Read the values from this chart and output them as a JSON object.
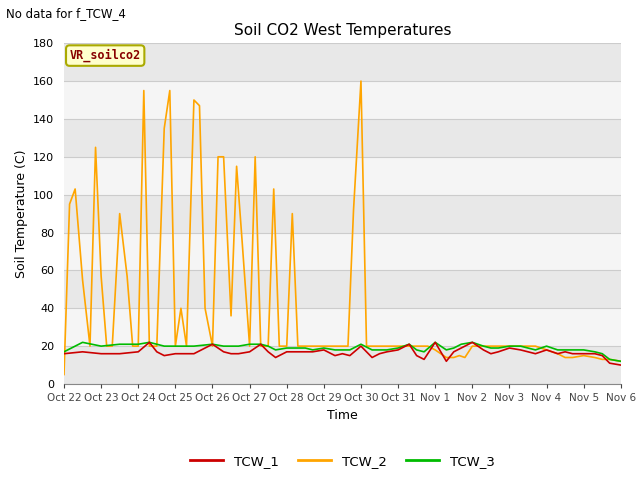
{
  "title": "Soil CO2 West Temperatures",
  "no_data_text": "No data for f_TCW_4",
  "xlabel": "Time",
  "ylabel": "Soil Temperature (C)",
  "ylim": [
    0,
    180
  ],
  "xlim": [
    0,
    15
  ],
  "tick_labels": [
    "Oct 22",
    "Oct 23",
    "Oct 24",
    "Oct 25",
    "Oct 26",
    "Oct 27",
    "Oct 28",
    "Oct 29",
    "Oct 30",
    "Oct 31",
    "Nov 1",
    "Nov 2",
    "Nov 3",
    "Nov 4",
    "Nov 5",
    "Nov 6"
  ],
  "annotation_text": "VR_soilco2",
  "annotation_box_facecolor": "#FFFFCC",
  "annotation_box_edgecolor": "#AAAA00",
  "annotation_text_color": "#880000",
  "fig_facecolor": "#FFFFFF",
  "plot_bg_color": "#FFFFFF",
  "band_colors": [
    "#E8E8E8",
    "#F5F5F5"
  ],
  "legend": [
    "TCW_1",
    "TCW_2",
    "TCW_3"
  ],
  "legend_colors": [
    "#CC0000",
    "#FFA500",
    "#00BB00"
  ],
  "grid_color": "#CCCCCC",
  "tcw1_x": [
    0,
    0.5,
    1.0,
    1.5,
    2.0,
    2.3,
    2.5,
    2.7,
    3.0,
    3.5,
    4.0,
    4.3,
    4.5,
    4.7,
    5.0,
    5.3,
    5.5,
    5.7,
    6.0,
    6.3,
    6.5,
    6.7,
    7.0,
    7.3,
    7.5,
    7.7,
    8.0,
    8.3,
    8.5,
    8.7,
    9.0,
    9.3,
    9.5,
    9.7,
    10.0,
    10.3,
    10.5,
    10.7,
    11.0,
    11.3,
    11.5,
    11.7,
    12.0,
    12.3,
    12.5,
    12.7,
    13.0,
    13.3,
    13.5,
    13.7,
    14.0,
    14.3,
    14.5,
    14.7,
    15.0
  ],
  "tcw1_y": [
    16,
    17,
    16,
    16,
    17,
    22,
    17,
    15,
    16,
    16,
    21,
    17,
    16,
    16,
    17,
    21,
    17,
    14,
    17,
    17,
    17,
    17,
    18,
    15,
    16,
    15,
    20,
    14,
    16,
    17,
    18,
    21,
    15,
    13,
    22,
    12,
    17,
    19,
    22,
    18,
    16,
    17,
    19,
    18,
    17,
    16,
    18,
    16,
    17,
    16,
    16,
    16,
    15,
    11,
    10
  ],
  "tcw2_x": [
    0.0,
    0.15,
    0.3,
    0.5,
    0.7,
    0.85,
    1.0,
    1.15,
    1.3,
    1.5,
    1.7,
    1.85,
    2.0,
    2.15,
    2.3,
    2.5,
    2.7,
    2.85,
    3.0,
    3.15,
    3.3,
    3.5,
    3.65,
    3.8,
    4.0,
    4.15,
    4.3,
    4.5,
    4.65,
    4.8,
    5.0,
    5.15,
    5.3,
    5.5,
    5.65,
    5.8,
    6.0,
    6.15,
    6.3,
    6.5,
    6.65,
    6.8,
    7.0,
    7.15,
    7.3,
    7.5,
    7.65,
    7.8,
    8.0,
    8.15,
    8.3,
    8.5,
    8.65,
    8.8,
    9.0,
    9.15,
    9.3,
    9.5,
    9.65,
    9.8,
    10.0,
    10.15,
    10.3,
    10.5,
    10.65,
    10.8,
    11.0,
    11.15,
    11.3,
    11.5,
    11.7,
    12.0,
    12.3,
    12.5,
    12.7,
    13.0,
    13.3,
    13.5,
    13.7,
    14.0,
    14.3,
    14.5,
    14.7,
    15.0
  ],
  "tcw2_y": [
    5,
    95,
    103,
    55,
    20,
    125,
    57,
    20,
    20,
    90,
    57,
    20,
    20,
    155,
    20,
    20,
    135,
    155,
    20,
    40,
    20,
    150,
    147,
    40,
    20,
    120,
    120,
    36,
    115,
    75,
    20,
    120,
    20,
    20,
    103,
    20,
    20,
    90,
    20,
    20,
    20,
    20,
    20,
    20,
    20,
    20,
    20,
    92,
    160,
    20,
    20,
    20,
    20,
    20,
    20,
    20,
    20,
    20,
    20,
    20,
    18,
    16,
    14,
    14,
    15,
    14,
    20,
    20,
    20,
    20,
    20,
    20,
    20,
    20,
    20,
    18,
    16,
    14,
    14,
    15,
    14,
    13,
    13,
    12
  ],
  "tcw3_x": [
    0,
    0.5,
    1.0,
    1.5,
    2.0,
    2.3,
    2.5,
    2.7,
    3.0,
    3.5,
    4.0,
    4.3,
    4.5,
    4.7,
    5.0,
    5.3,
    5.5,
    5.7,
    6.0,
    6.3,
    6.5,
    6.7,
    7.0,
    7.3,
    7.5,
    7.7,
    8.0,
    8.3,
    8.5,
    8.7,
    9.0,
    9.3,
    9.5,
    9.7,
    10.0,
    10.3,
    10.5,
    10.7,
    11.0,
    11.3,
    11.5,
    11.7,
    12.0,
    12.3,
    12.5,
    12.7,
    13.0,
    13.3,
    13.5,
    13.7,
    14.0,
    14.3,
    14.5,
    14.7,
    15.0
  ],
  "tcw3_y": [
    17,
    22,
    20,
    21,
    21,
    22,
    21,
    20,
    20,
    20,
    21,
    20,
    20,
    20,
    21,
    21,
    20,
    18,
    19,
    19,
    19,
    18,
    19,
    18,
    18,
    18,
    21,
    18,
    18,
    18,
    19,
    21,
    18,
    17,
    22,
    18,
    19,
    21,
    22,
    20,
    19,
    19,
    20,
    20,
    19,
    18,
    20,
    18,
    18,
    18,
    18,
    17,
    16,
    13,
    12
  ]
}
